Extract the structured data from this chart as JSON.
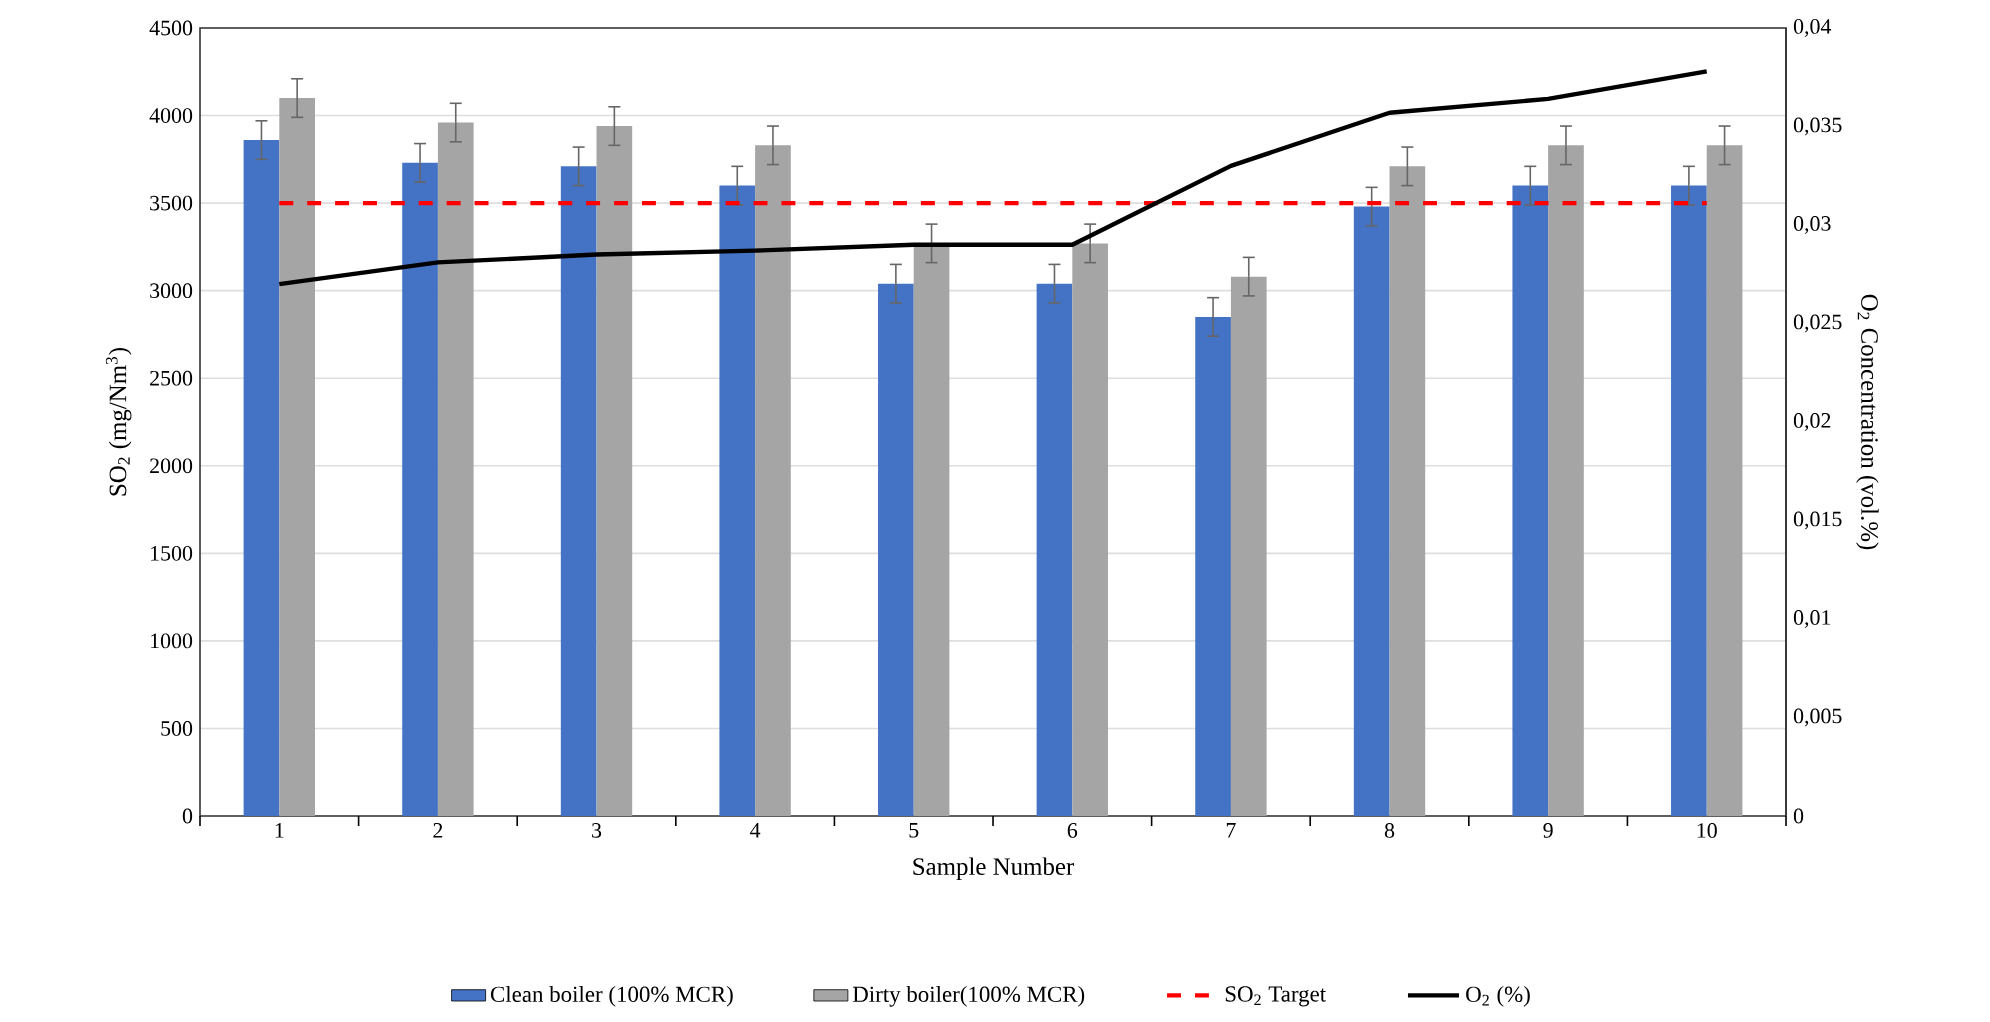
{
  "chart_data": {
    "type": "bar",
    "xlabel": "Sample Number",
    "ylabel": "SO$_{2}$ (mg/Nm$^{3}$)",
    "y2label": "O$_{2}$ Concentration (vol.%)",
    "categories": [
      "1",
      "2",
      "3",
      "4",
      "5",
      "6",
      "7",
      "8",
      "9",
      "10"
    ],
    "series": [
      {
        "name": "Clean boiler (100% MCR)",
        "color": "#4472c4",
        "values": [
          3860,
          3730,
          3710,
          3600,
          3040,
          3040,
          2850,
          3480,
          3600,
          3600
        ],
        "errors": [
          110,
          110,
          110,
          110,
          110,
          110,
          110,
          110,
          110,
          110
        ]
      },
      {
        "name": "Dirty boiler(100% MCR)",
        "color": "#a5a5a5",
        "values": [
          4100,
          3960,
          3940,
          3830,
          3270,
          3270,
          3080,
          3710,
          3830,
          3830
        ],
        "errors": [
          110,
          110,
          110,
          110,
          110,
          110,
          110,
          110,
          110,
          110
        ]
      },
      {
        "name": "SO$_{2}$ Target",
        "type": "line",
        "color": "#ff0000",
        "line_style": "dashed",
        "values": [
          3500,
          3500,
          3500,
          3500,
          3500,
          3500,
          3500,
          3500,
          3500,
          3500
        ]
      },
      {
        "name": "O$_{2}$ (%)",
        "type": "line",
        "axis": "y2",
        "color": "#000000",
        "line_style": "solid",
        "values": [
          0.027,
          0.0281,
          0.0285,
          0.0287,
          0.029,
          0.029,
          0.033,
          0.0357,
          0.0364,
          0.0378
        ]
      }
    ],
    "ylim": [
      0,
      4500
    ],
    "yticks": [
      0,
      500,
      1000,
      1500,
      2000,
      2500,
      3000,
      3500,
      4000,
      4500
    ],
    "y2lim": [
      0,
      0.04
    ],
    "y2ticks": [
      0,
      {
        "value": 0.005,
        "label": "0,005"
      },
      {
        "value": 0.01,
        "label": "0,01"
      },
      {
        "value": 0.015,
        "label": "0,015"
      },
      {
        "value": 0.02,
        "label": "0,02"
      },
      {
        "value": 0.025,
        "label": "0,025"
      },
      {
        "value": 0.03,
        "label": "0,03"
      },
      {
        "value": 0.035,
        "label": "0,035"
      },
      {
        "value": 0.04,
        "label": "0,04"
      }
    ],
    "grid": "y",
    "legend": "bottom"
  }
}
